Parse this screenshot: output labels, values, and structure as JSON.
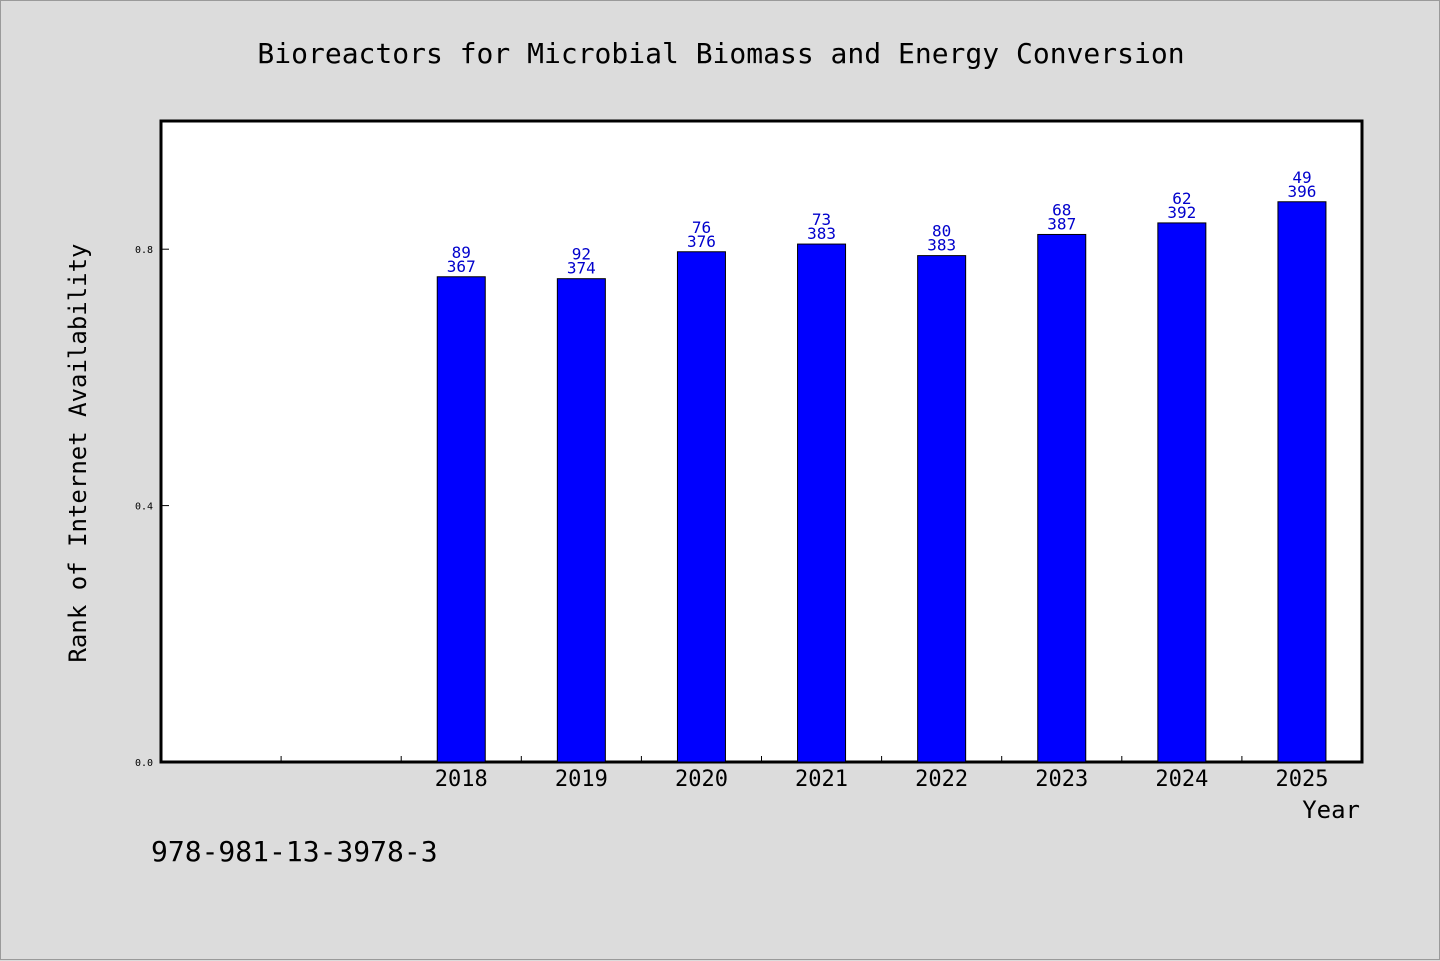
{
  "footer_text": "978-981-13-3978-3",
  "chart_data": {
    "type": "bar",
    "title": "Bioreactors for Microbial Biomass and Energy Conversion",
    "xlabel": "Year",
    "ylabel": "Rank of Internet Availability",
    "ylim": [
      0,
      1.0
    ],
    "yticks": [
      "0.0",
      "0.4",
      "0.8"
    ],
    "ytick_values": [
      0.0,
      0.4,
      0.8
    ],
    "x_slots": 10,
    "categories": [
      "2018",
      "2019",
      "2020",
      "2021",
      "2022",
      "2023",
      "2024",
      "2025"
    ],
    "values": [
      0.757,
      0.754,
      0.796,
      0.808,
      0.79,
      0.823,
      0.841,
      0.874
    ],
    "label_top": [
      "89",
      "92",
      "76",
      "73",
      "80",
      "68",
      "62",
      "49"
    ],
    "label_bottom": [
      "367",
      "374",
      "376",
      "383",
      "383",
      "387",
      "392",
      "396"
    ],
    "bar_color": "#0000ff",
    "label_color": "#0000cc",
    "grid": false,
    "legend": "none"
  }
}
